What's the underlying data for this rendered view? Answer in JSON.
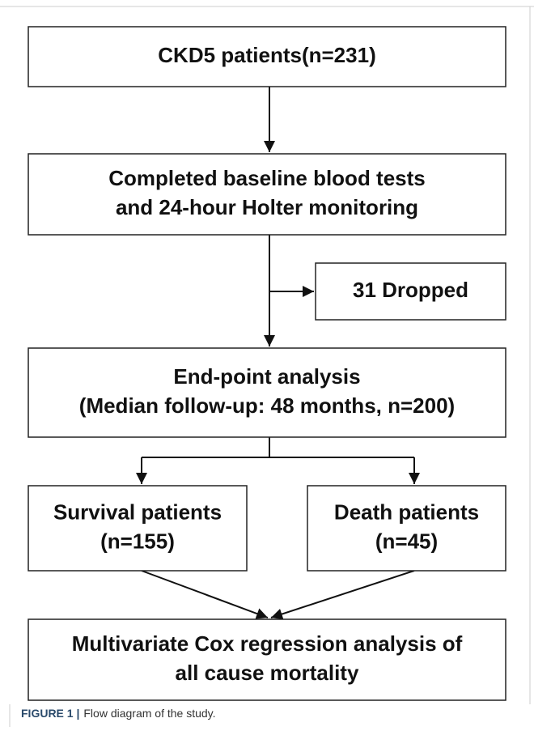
{
  "nodes": [
    {
      "lines": [
        "CKD5 patients(n=231)"
      ]
    },
    {
      "lines": [
        "Completed baseline blood tests",
        "and 24-hour Holter monitoring"
      ]
    },
    {
      "lines": [
        "31 Dropped"
      ]
    },
    {
      "lines": [
        "End-point analysis",
        "(Median follow-up: 48 months, n=200)"
      ]
    },
    {
      "lines": [
        "Survival patients",
        "(n=155)"
      ]
    },
    {
      "lines": [
        "Death patients",
        "(n=45)"
      ]
    },
    {
      "lines": [
        "Multivariate Cox regression analysis of",
        "all cause mortality"
      ]
    }
  ],
  "caption": {
    "label": "FIGURE 1 |",
    "text": "Flow diagram of the study."
  }
}
